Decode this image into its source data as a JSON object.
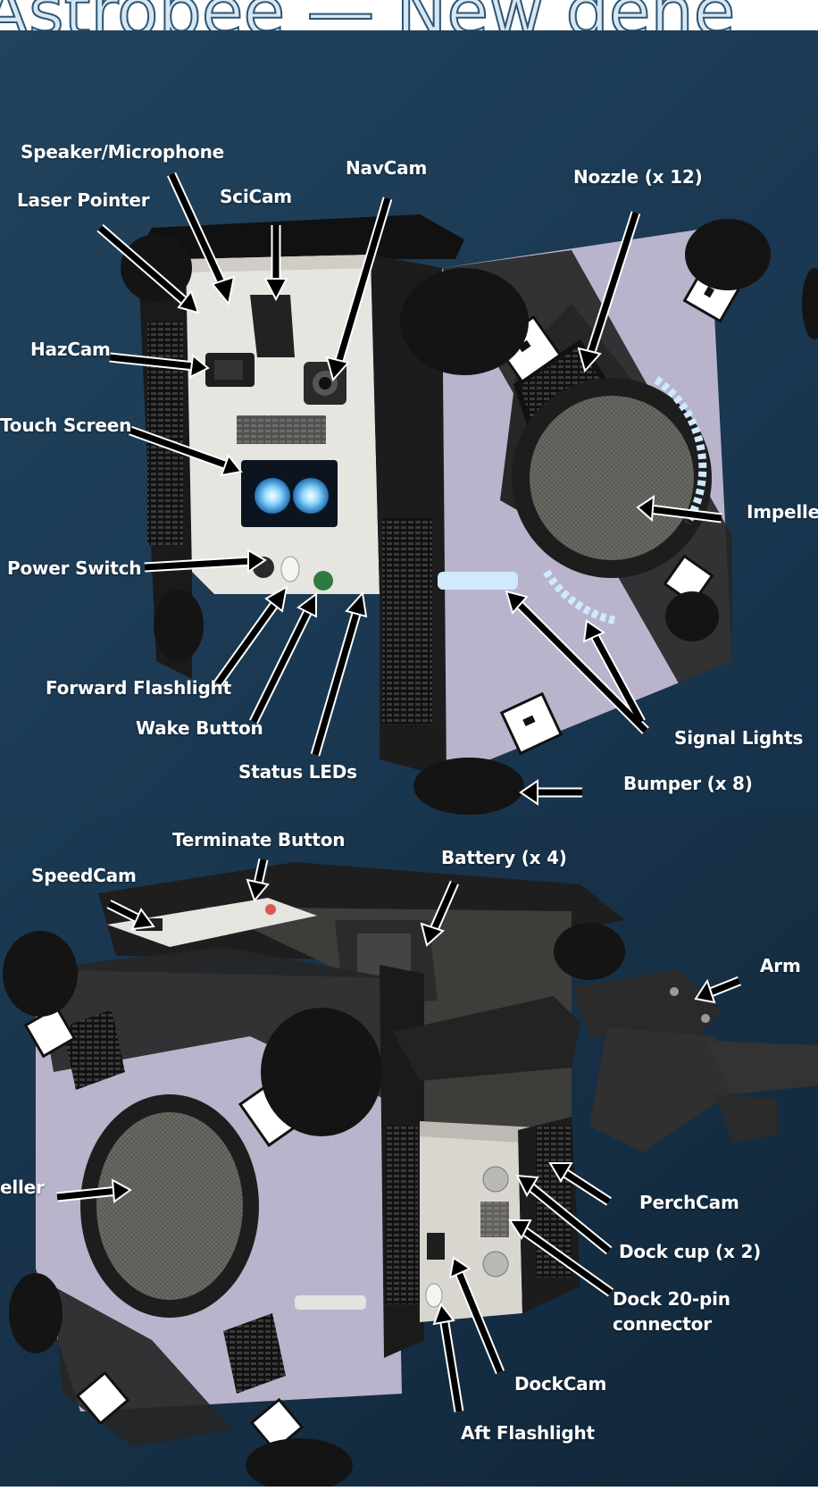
{
  "header": {
    "title_fragment": "Astrobee — New gene"
  },
  "top_panel": {
    "labels": {
      "speaker_microphone": "Speaker/Microphone",
      "laser_pointer": "Laser Pointer",
      "scicam": "SciCam",
      "navcam": "NavCam",
      "nozzle": "Nozzle (x 12)",
      "hazcam": "HazCam",
      "touch_screen": "Touch Screen",
      "impeller": "Impelle",
      "power_switch": "Power Switch",
      "forward_flashlight": "Forward Flashlight",
      "wake_button": "Wake Button",
      "status_leds": "Status LEDs",
      "signal_lights": "Signal Lights",
      "bumper": "Bumper (x 8)"
    }
  },
  "bottom_panel": {
    "labels": {
      "terminate_button": "Terminate Button",
      "speedcam": "SpeedCam",
      "battery": "Battery (x 4)",
      "arm": "Arm",
      "impeller": "eller",
      "perchcam": "PerchCam",
      "dock_cup": "Dock cup (x 2)",
      "dock_connector_line1": "Dock 20-pin",
      "dock_connector_line2": "connector",
      "dockcam": "DockCam",
      "aft_flashlight": "Aft Flashlight"
    }
  },
  "colors": {
    "background_top": "#1e3a52",
    "background_bottom": "#152d42",
    "label_text": "#ffffff",
    "arrow": "#000000",
    "arrow_outline": "#ffffff",
    "panel_white": "#e8e8e4",
    "fabric_lavender": "#b9b4cc",
    "body_black": "#1c1c1c",
    "signal_light": "#bfe3ff"
  }
}
